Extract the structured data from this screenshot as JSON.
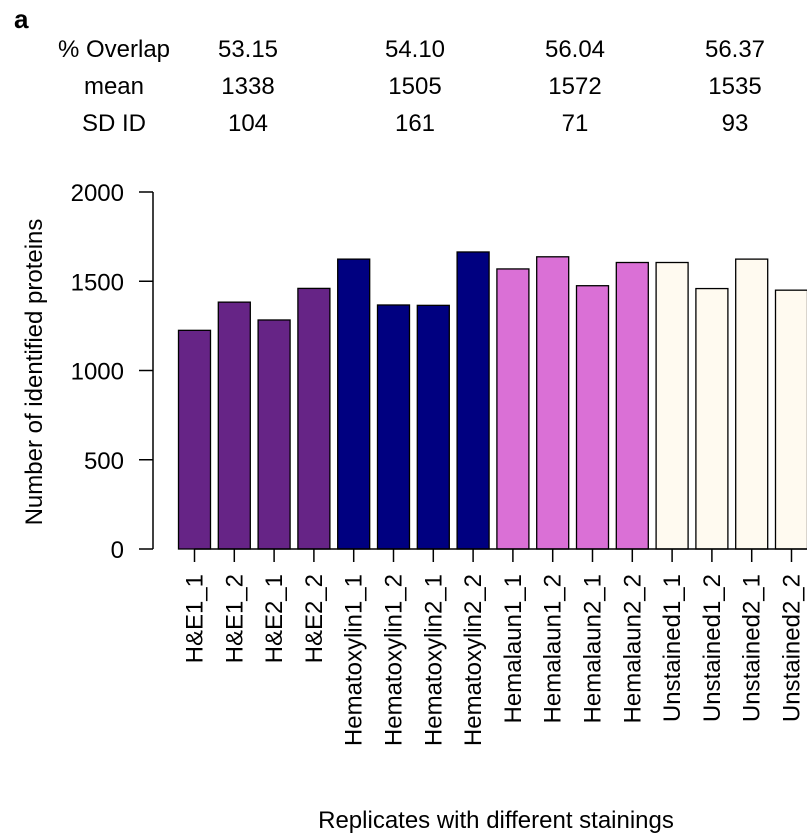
{
  "panel_label": "a",
  "stats_rows": [
    {
      "label": "% Overlap",
      "values": [
        "53.15",
        "54.10",
        "56.04",
        "56.37"
      ]
    },
    {
      "label": "mean",
      "values": [
        "1338",
        "1505",
        "1572",
        "1535"
      ]
    },
    {
      "label": "SD ID",
      "values": [
        "104",
        "161",
        "71",
        "93"
      ]
    }
  ],
  "chart_data": {
    "type": "bar",
    "title": "",
    "xlabel": "Replicates with different stainings",
    "ylabel": "Number of identified proteins",
    "ylim": [
      0,
      2000
    ],
    "yticks": [
      0,
      500,
      1000,
      1500,
      2000
    ],
    "categories": [
      "H&E1_1",
      "H&E1_2",
      "H&E2_1",
      "H&E2_2",
      "Hematoxylin1_1",
      "Hematoxylin1_2",
      "Hematoxylin2_1",
      "Hematoxylin2_2",
      "Hemalaun1_1",
      "Hemalaun1_2",
      "Hemalaun2_1",
      "Hemalaun2_2",
      "Unstained1_1",
      "Unstained1_2",
      "Unstained2_1",
      "Unstained2_2"
    ],
    "values": [
      1225,
      1383,
      1283,
      1460,
      1624,
      1367,
      1365,
      1664,
      1569,
      1637,
      1475,
      1605,
      1605,
      1459,
      1624,
      1450
    ],
    "group_colors": [
      "#662486",
      "#000080",
      "#da70d6",
      "#fffaf0"
    ],
    "grid": false
  }
}
